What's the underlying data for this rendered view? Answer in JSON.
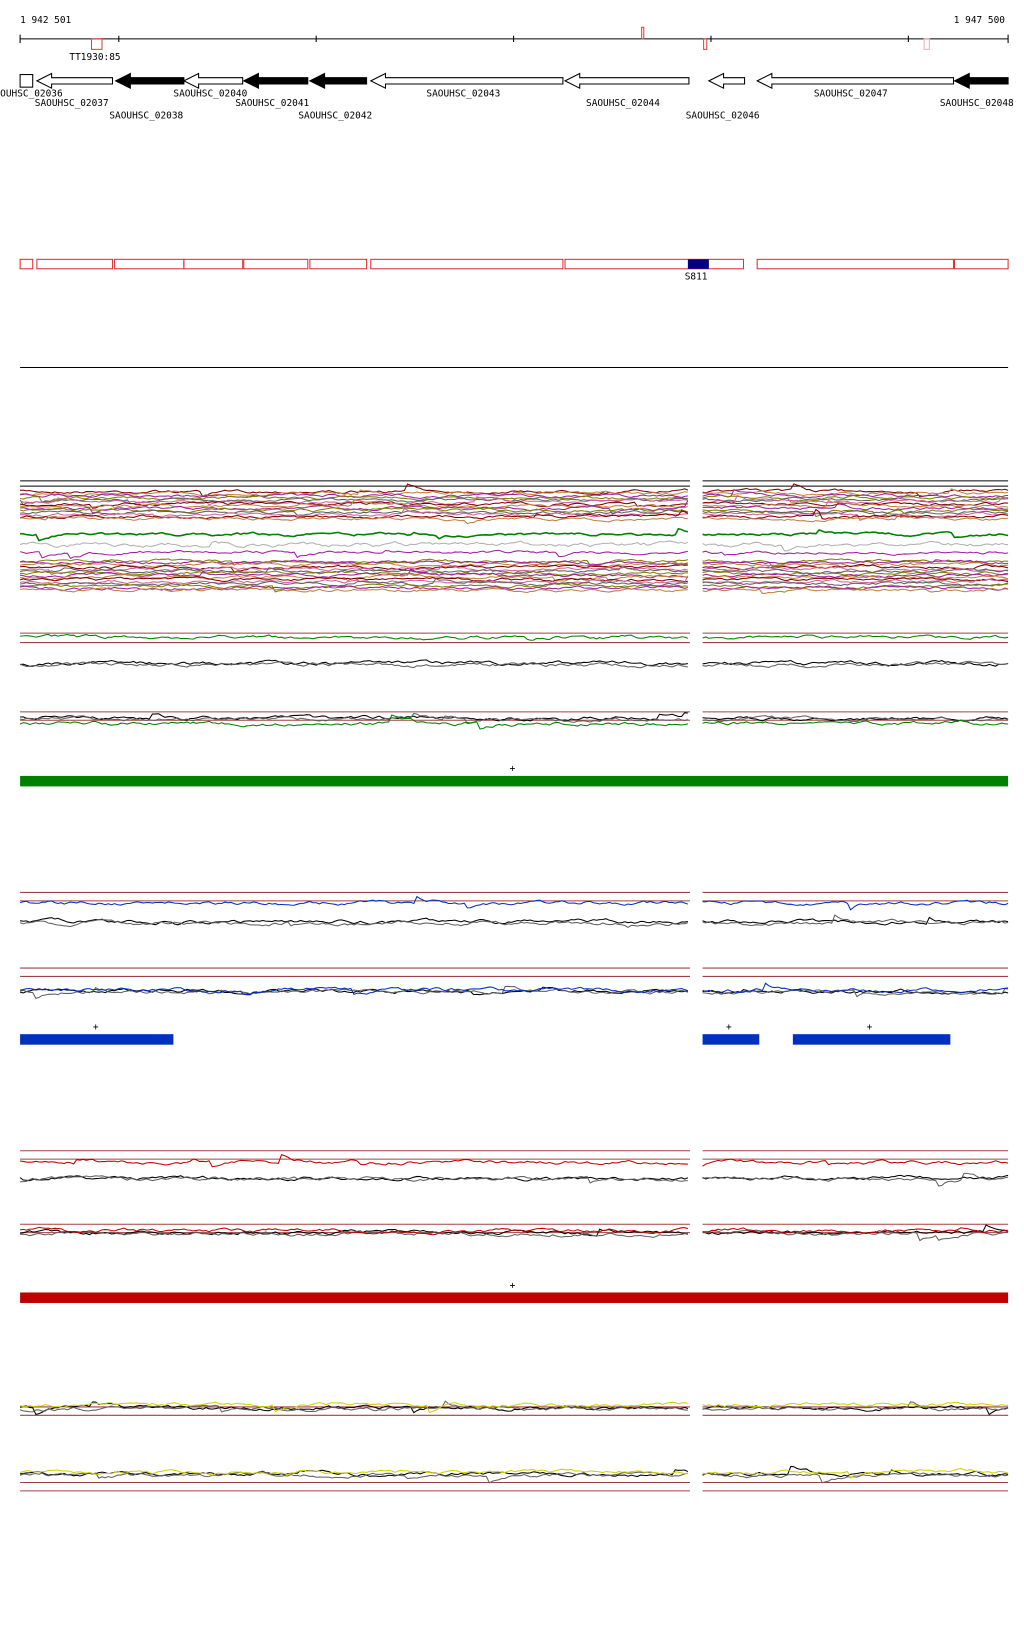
{
  "header": {
    "start": "1 942 501",
    "end": "1 947 500"
  },
  "features": [
    {
      "label": "TT1930:85"
    }
  ],
  "genes": [
    {
      "label": "OUHSC_02036",
      "fill": "white"
    },
    {
      "label": "SAOUHSC_02037",
      "fill": "white"
    },
    {
      "label": "SAOUHSC_02038",
      "fill": "black"
    },
    {
      "label": "SAOUHSC_02040",
      "fill": "white"
    },
    {
      "label": "SAOUHSC_02041",
      "fill": "black"
    },
    {
      "label": "SAOUHSC_02042",
      "fill": "black"
    },
    {
      "label": "SAOUHSC_02043",
      "fill": "white"
    },
    {
      "label": "SAOUHSC_02044",
      "fill": "white"
    },
    {
      "label": "SAOUHSC_02046",
      "fill": "white"
    },
    {
      "label": "SAOUHSC_02047",
      "fill": "white"
    },
    {
      "label": "SAOUHSC_02048",
      "fill": "black"
    }
  ],
  "segment": {
    "label": "S811"
  },
  "strand_markers": [
    "+",
    "+",
    "+",
    "+",
    "+"
  ]
}
